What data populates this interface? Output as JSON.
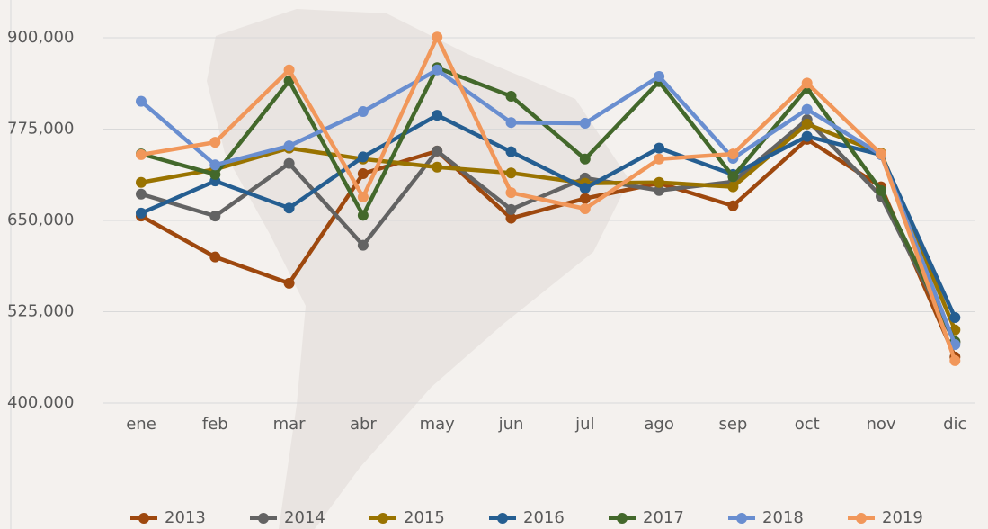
{
  "chart_data": {
    "type": "line",
    "categories": [
      "ene",
      "feb",
      "mar",
      "abr",
      "may",
      "jun",
      "jul",
      "ago",
      "sep",
      "oct",
      "nov",
      "dic"
    ],
    "series": [
      {
        "name": "2013",
        "color": "#9e480e",
        "values": [
          656000,
          600000,
          564000,
          714000,
          745000,
          653000,
          680000,
          701000,
          670000,
          761000,
          696000,
          463000
        ]
      },
      {
        "name": "2014",
        "color": "#636363",
        "values": [
          686000,
          656000,
          728000,
          616000,
          745000,
          665000,
          708000,
          691000,
          703000,
          788000,
          683000,
          483000
        ]
      },
      {
        "name": "2015",
        "color": "#997300",
        "values": [
          702000,
          720000,
          749000,
          734000,
          723000,
          715000,
          701000,
          702000,
          696000,
          782000,
          742000,
          500000
        ]
      },
      {
        "name": "2016",
        "color": "#255e91",
        "values": [
          660000,
          704000,
          667000,
          737000,
          794000,
          744000,
          694000,
          749000,
          713000,
          765000,
          740000,
          517000
        ]
      },
      {
        "name": "2017",
        "color": "#43682b",
        "values": [
          741000,
          713000,
          841000,
          657000,
          859000,
          820000,
          734000,
          840000,
          710000,
          831000,
          691000,
          484000
        ]
      },
      {
        "name": "2018",
        "color": "#698ed0",
        "values": [
          813000,
          726000,
          752000,
          799000,
          856000,
          784000,
          783000,
          847000,
          735000,
          802000,
          740000,
          480000
        ]
      },
      {
        "name": "2019",
        "color": "#f1975a",
        "values": [
          740000,
          757000,
          856000,
          682000,
          901000,
          688000,
          666000,
          734000,
          741000,
          838000,
          741000,
          458000
        ]
      }
    ],
    "ylim": [
      400000,
      900000
    ],
    "yticks": [
      {
        "value": 400000,
        "label": "400,000"
      },
      {
        "value": 525000,
        "label": "525,000"
      },
      {
        "value": 650000,
        "label": "650,000"
      },
      {
        "value": 775000,
        "label": "775,000"
      },
      {
        "value": 900000,
        "label": "900,000"
      }
    ],
    "grid": true,
    "legend": "bottom"
  }
}
